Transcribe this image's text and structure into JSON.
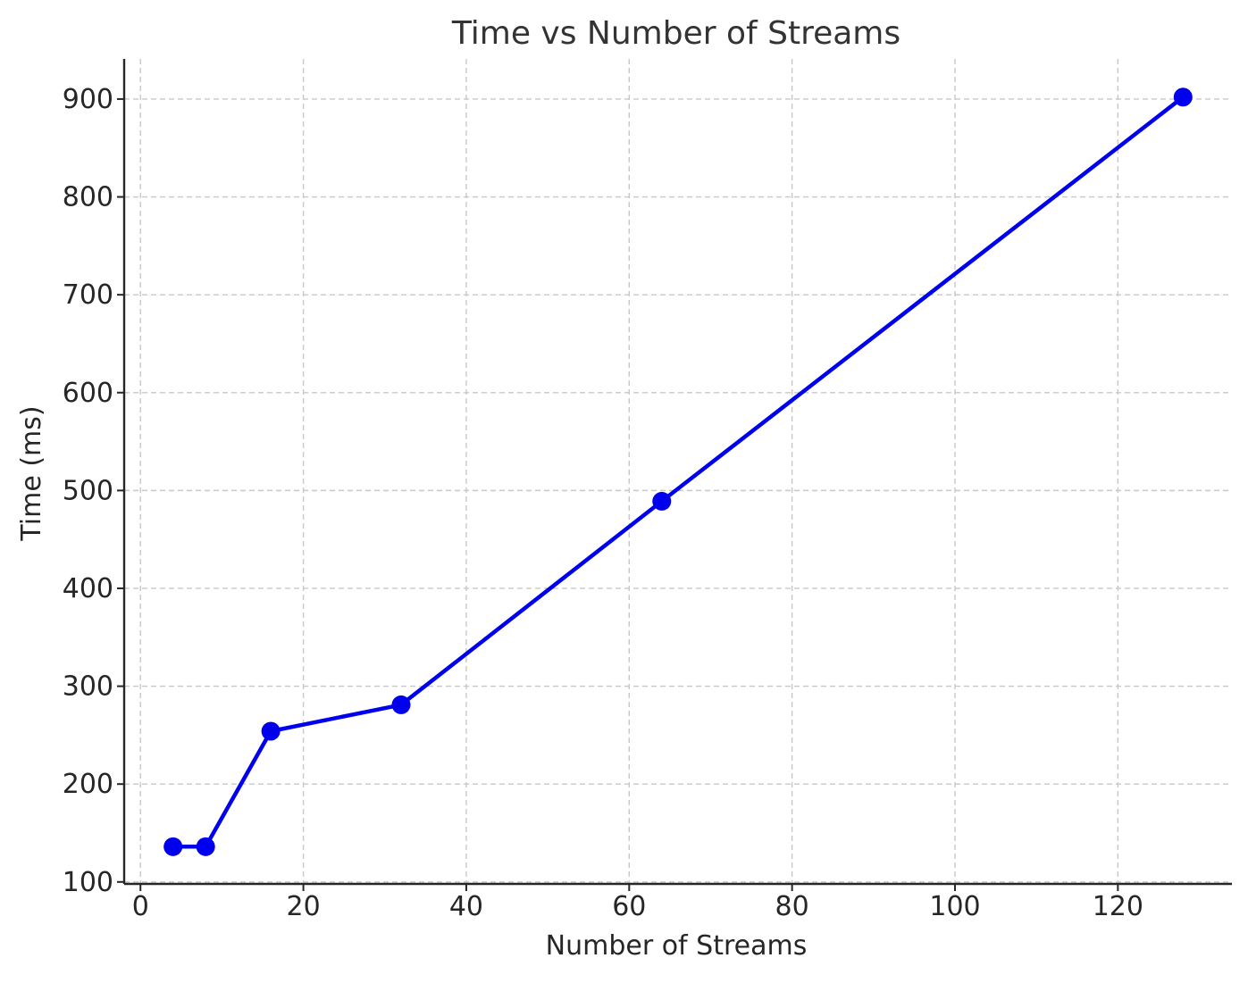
{
  "chart_data": {
    "type": "line",
    "title": "Time vs Number of Streams",
    "xlabel": "Number of Streams",
    "ylabel": "Time (ms)",
    "xlim": [
      -2,
      134
    ],
    "ylim": [
      98,
      941
    ],
    "x_ticks": [
      0,
      20,
      40,
      60,
      80,
      100,
      120
    ],
    "y_ticks": [
      100,
      200,
      300,
      400,
      500,
      600,
      700,
      800,
      900
    ],
    "grid": true,
    "series": [
      {
        "color": "#0000ee",
        "x": [
          4,
          8,
          16,
          32,
          64,
          128
        ],
        "y": [
          136,
          136,
          254,
          281,
          489,
          902
        ]
      }
    ]
  }
}
